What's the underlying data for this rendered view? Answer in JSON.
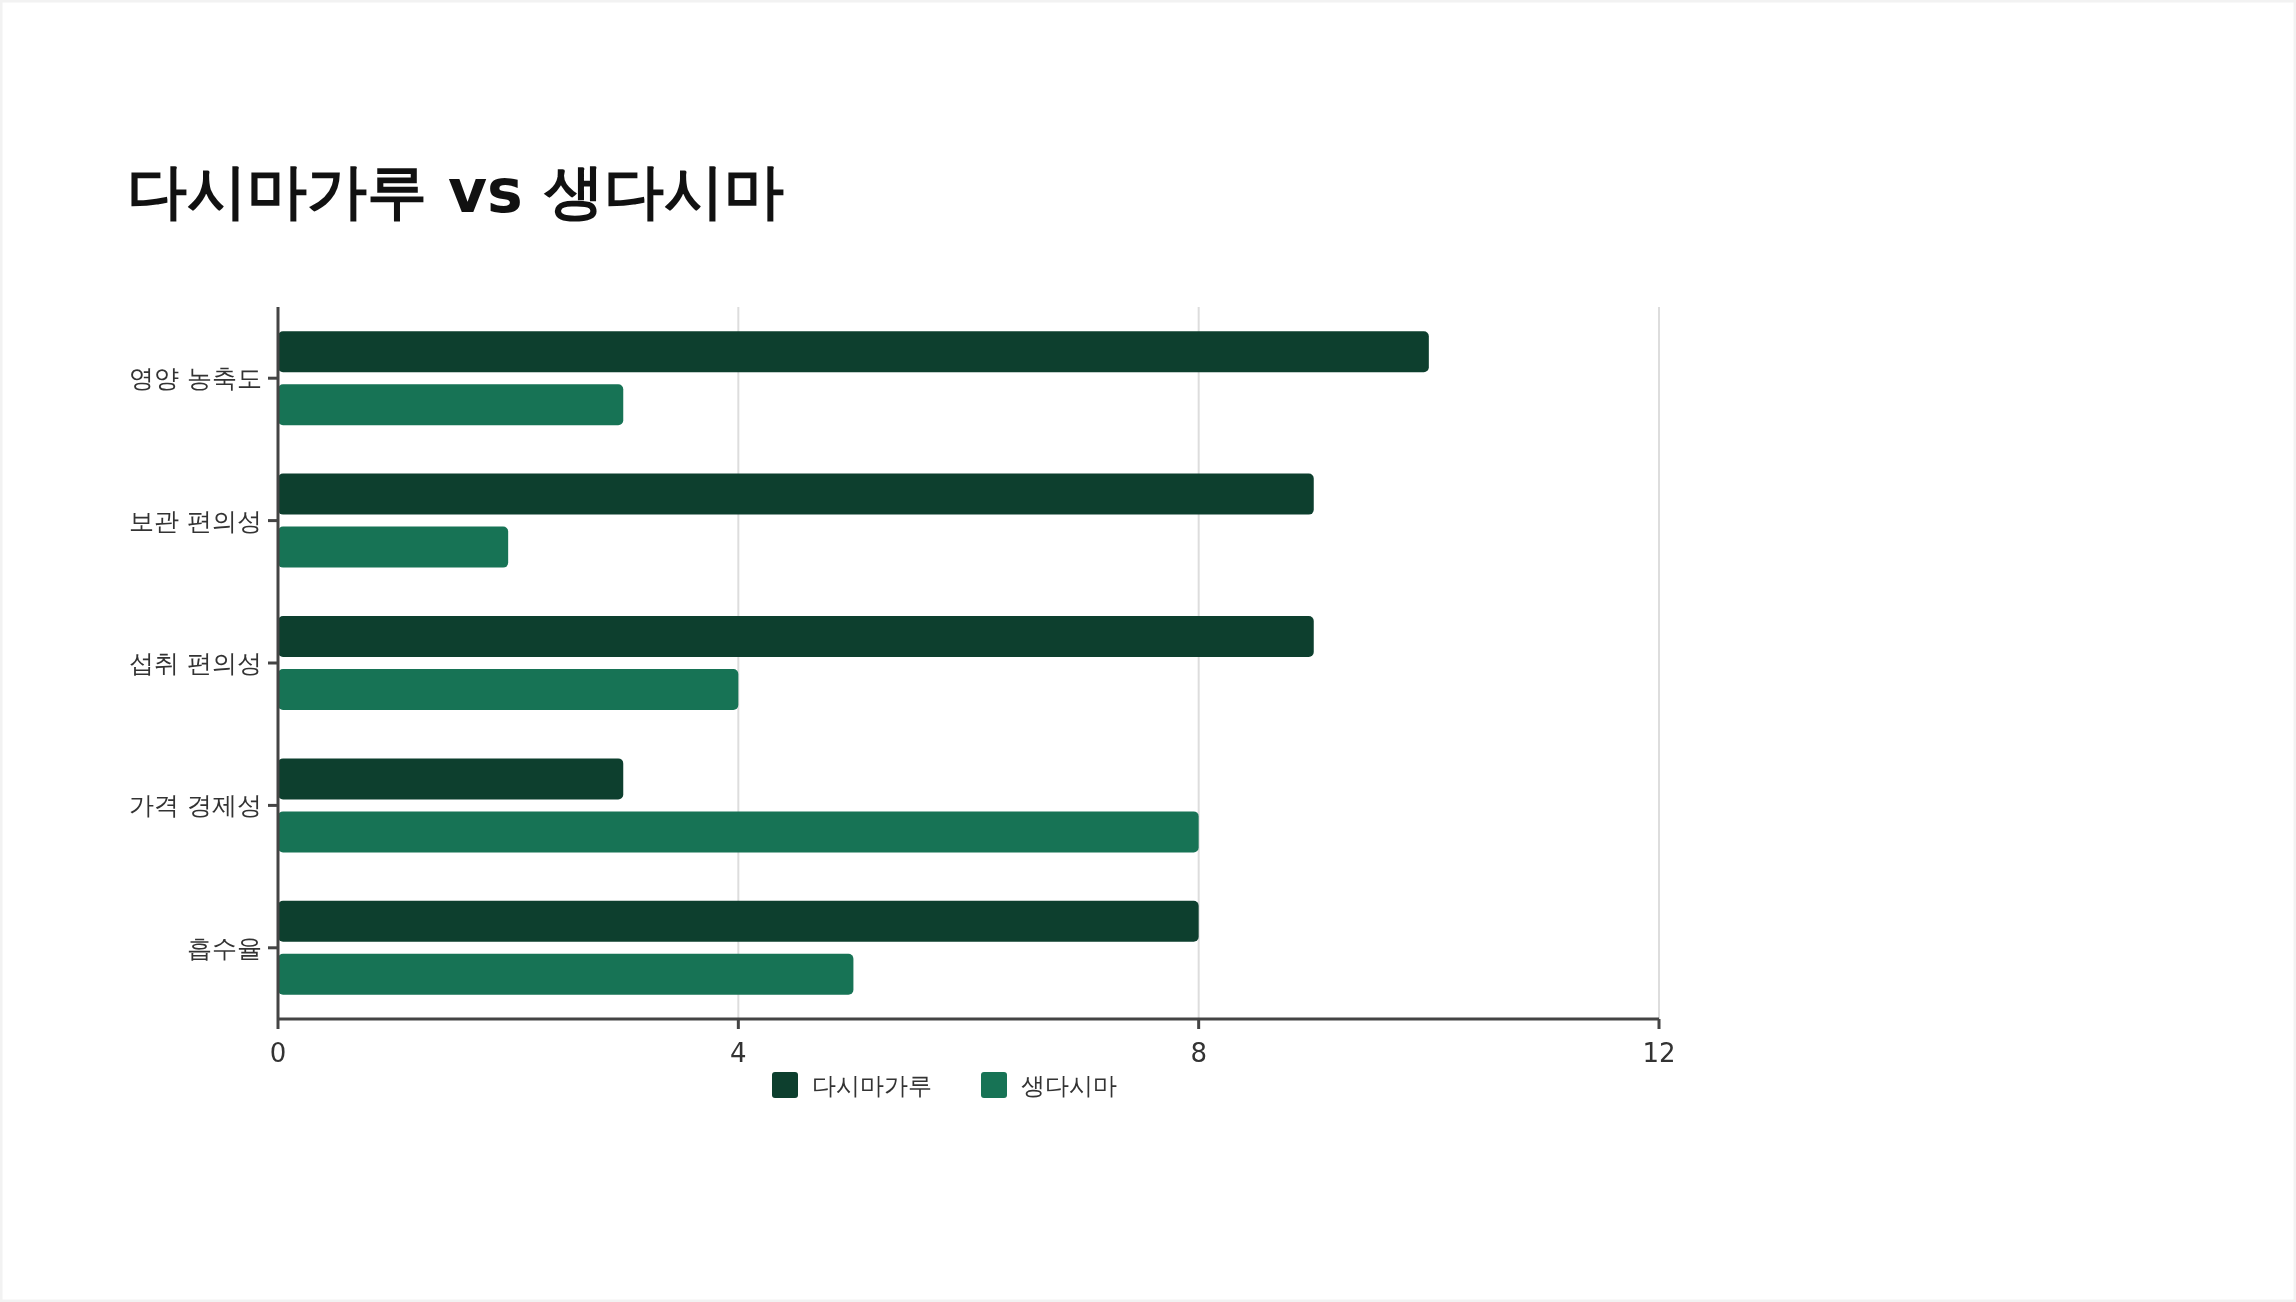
{
  "chart_data": {
    "type": "bar",
    "orientation": "horizontal",
    "title": "다시마가루 vs 생다시마",
    "categories": [
      "영양 농축도",
      "보관 편의성",
      "섭취 편의성",
      "가격 경제성",
      "흡수율"
    ],
    "series": [
      {
        "name": "다시마가루",
        "color": "#0d3f2e",
        "values": [
          10,
          9,
          9,
          3,
          8
        ]
      },
      {
        "name": "생다시마",
        "color": "#177355",
        "values": [
          3,
          2,
          4,
          8,
          5
        ]
      }
    ],
    "xlim": [
      0,
      12
    ],
    "xticks": [
      0,
      4,
      8,
      12
    ],
    "grid": "x",
    "legend": "bottom"
  }
}
